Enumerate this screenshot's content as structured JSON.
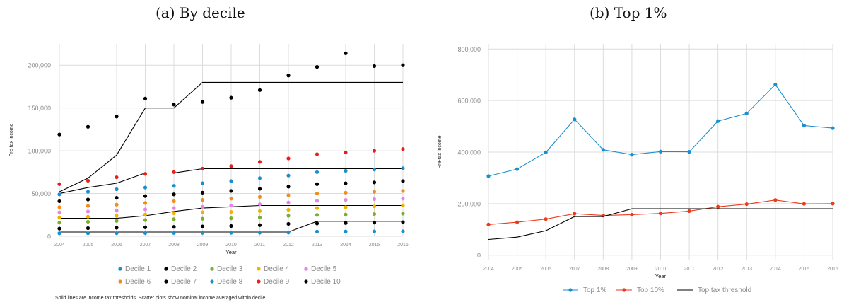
{
  "panels": {
    "a": {
      "title": "(a) By decile"
    },
    "b": {
      "title": "(b) Top 1%"
    }
  },
  "footnote": "Solid lines are income tax thresholds. Scatter plots show nominal income averaged within decile",
  "chart_data": [
    {
      "type": "scatter",
      "title": "(a) By decile",
      "xlabel": "Year",
      "ylabel": "Pre-tax income",
      "x": [
        2004,
        2005,
        2006,
        2007,
        2008,
        2009,
        2010,
        2011,
        2012,
        2013,
        2014,
        2015,
        2016
      ],
      "ylim": [
        0,
        225000
      ],
      "yticks": [
        0,
        50000,
        100000,
        150000,
        200000
      ],
      "ytick_labels": [
        "0",
        "50,000",
        "100,000",
        "150,000",
        "200,000"
      ],
      "grid": true,
      "legend_position": "bottom",
      "series": [
        {
          "name": "Decile 1",
          "color": "#1a8fcf",
          "values": [
            3500,
            3600,
            3700,
            3800,
            3900,
            4000,
            4100,
            4200,
            4400,
            5500,
            5600,
            5700,
            5800
          ]
        },
        {
          "name": "Decile 2",
          "color": "#000000",
          "values": [
            9000,
            9500,
            10000,
            10500,
            11000,
            11500,
            12000,
            13000,
            14500,
            15000,
            15500,
            16000,
            16500
          ]
        },
        {
          "name": "Decile 3",
          "color": "#7ab02c",
          "values": [
            16000,
            17000,
            18000,
            19000,
            20000,
            20500,
            21000,
            22000,
            24000,
            25000,
            25500,
            26000,
            26500
          ]
        },
        {
          "name": "Decile 4",
          "color": "#f2b300",
          "values": [
            22000,
            23000,
            24000,
            25500,
            27000,
            28000,
            28500,
            29500,
            31000,
            33000,
            34000,
            35000,
            36000
          ]
        },
        {
          "name": "Decile 5",
          "color": "#e684e6",
          "values": [
            28000,
            29000,
            30000,
            31500,
            33000,
            34500,
            36000,
            37500,
            39500,
            41500,
            42500,
            43500,
            44000
          ]
        },
        {
          "name": "Decile 6",
          "color": "#f28c1a",
          "values": [
            34000,
            35500,
            37000,
            39000,
            41000,
            42500,
            44000,
            46000,
            48000,
            50000,
            51000,
            52000,
            53000
          ]
        },
        {
          "name": "Decile 7",
          "color": "#000000",
          "values": [
            41000,
            43000,
            45000,
            47000,
            49000,
            51000,
            53000,
            55500,
            58000,
            61000,
            62000,
            63000,
            64500
          ]
        },
        {
          "name": "Decile 8",
          "color": "#1a8fcf",
          "values": [
            49000,
            52000,
            55000,
            57000,
            59000,
            62000,
            64500,
            68000,
            71000,
            75000,
            76500,
            78000,
            79500
          ]
        },
        {
          "name": "Decile 9",
          "color": "#ee1c1c",
          "values": [
            61000,
            65000,
            69000,
            73000,
            75000,
            79000,
            82000,
            87000,
            91000,
            96000,
            98000,
            100000,
            102000
          ]
        },
        {
          "name": "Decile 10",
          "color": "#000000",
          "values": [
            119000,
            128000,
            140000,
            161000,
            154000,
            157000,
            162000,
            171000,
            188000,
            198000,
            214000,
            199000,
            200000
          ]
        }
      ],
      "thresholds": [
        [
          5000,
          5000,
          5000,
          5000,
          5000,
          5000,
          5000,
          5000,
          5000,
          17500,
          17500,
          17500,
          17500
        ],
        [
          21000,
          21000,
          21000,
          24000,
          29000,
          33000,
          34500,
          36000,
          36000,
          36000,
          36000,
          36000,
          36000
        ],
        [
          50000,
          57000,
          62000,
          74000,
          74000,
          79000,
          79000,
          79000,
          79000,
          79000,
          79000,
          79000,
          79000
        ],
        [
          52000,
          68000,
          95000,
          150000,
          150000,
          180000,
          180000,
          180000,
          180000,
          180000,
          180000,
          180000,
          180000
        ]
      ]
    },
    {
      "type": "line",
      "title": "(b) Top 1%",
      "xlabel": "Year",
      "ylabel": "Pre-tax income",
      "x": [
        2004,
        2005,
        2006,
        2007,
        2008,
        2009,
        2010,
        2011,
        2012,
        2013,
        2014,
        2015,
        2016
      ],
      "ylim": [
        -20000,
        820000
      ],
      "yticks": [
        0,
        200000,
        400000,
        600000,
        800000
      ],
      "ytick_labels": [
        "0",
        "200,000",
        "400,000",
        "600,000",
        "800,000"
      ],
      "grid": true,
      "legend_position": "bottom",
      "series": [
        {
          "name": "Top 1%",
          "color": "#1a8fcf",
          "values": [
            307000,
            334000,
            399000,
            527000,
            409000,
            390000,
            402000,
            401000,
            520000,
            550000,
            662000,
            503000,
            493000
          ]
        },
        {
          "name": "Top 10%",
          "color": "#ee3a1c",
          "values": [
            119000,
            128000,
            140000,
            161000,
            154000,
            157000,
            162000,
            171000,
            188000,
            198000,
            214000,
            199000,
            200000
          ]
        },
        {
          "name": "Top tax threshold",
          "color": "#000000",
          "values": [
            61000,
            70000,
            95000,
            150000,
            150000,
            180000,
            180000,
            180000,
            180000,
            180000,
            180000,
            180000,
            180000
          ]
        }
      ]
    }
  ]
}
